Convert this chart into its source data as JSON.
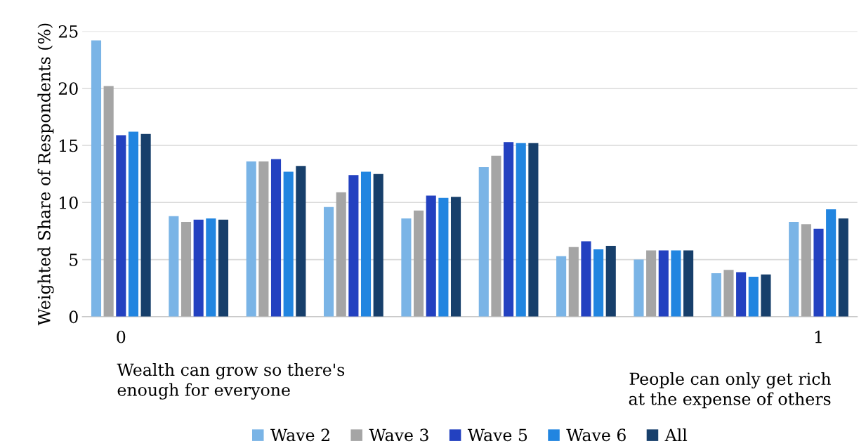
{
  "chart_data": {
    "type": "bar",
    "ylabel": "Weighted Share of Respondents (%)",
    "categories": [
      "0",
      null,
      null,
      null,
      null,
      null,
      null,
      null,
      null,
      "1"
    ],
    "series": [
      {
        "name": "Wave 2",
        "color": "#7ab4e6",
        "values": [
          24.2,
          8.8,
          13.6,
          9.6,
          8.6,
          13.1,
          5.3,
          5.0,
          3.8,
          8.3
        ]
      },
      {
        "name": "Wave 3",
        "color": "#a5a5a5",
        "values": [
          20.2,
          8.3,
          13.6,
          10.9,
          9.3,
          14.1,
          6.1,
          5.8,
          4.1,
          8.1
        ]
      },
      {
        "name": "Wave 5",
        "color": "#2341c0",
        "values": [
          15.9,
          8.5,
          13.8,
          12.4,
          10.6,
          15.3,
          6.6,
          5.8,
          3.9,
          7.7
        ]
      },
      {
        "name": "Wave 6",
        "color": "#2185e0",
        "values": [
          16.2,
          8.6,
          12.7,
          12.7,
          10.4,
          15.2,
          5.9,
          5.8,
          3.5,
          9.4
        ]
      },
      {
        "name": "All",
        "color": "#173f6b",
        "values": [
          16.0,
          8.5,
          13.2,
          12.5,
          10.5,
          15.2,
          6.2,
          5.8,
          3.7,
          8.6
        ]
      }
    ],
    "ylim": [
      0,
      25
    ],
    "yticks": [
      0,
      5,
      10,
      15,
      20,
      25
    ],
    "grid": "y",
    "legend": "bottom",
    "annotations": [
      "Wealth can grow so there's\nenough for everyone",
      "People can only get rich\nat the expense of others"
    ]
  }
}
